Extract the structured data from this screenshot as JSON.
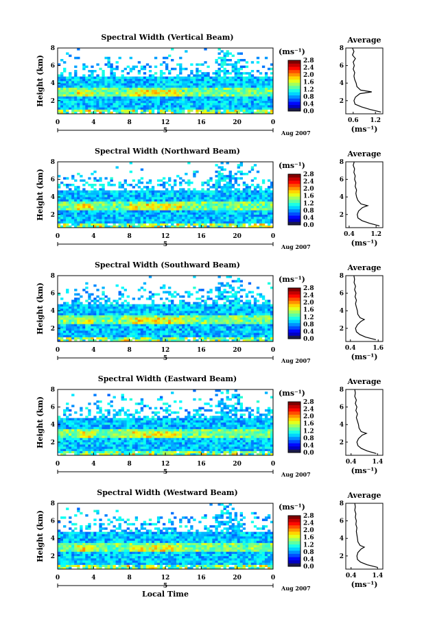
{
  "chart_data": [
    {
      "type": "heatmap",
      "title": "Spectral Width (Vertical Beam)",
      "ylabel": "Height (km)",
      "xlabel": "",
      "x_ticks": [
        "0",
        "4",
        "8",
        "12",
        "16",
        "20",
        "0"
      ],
      "y_ticks": [
        "2",
        "4",
        "6",
        "8"
      ],
      "xlim": [
        0,
        24
      ],
      "ylim": [
        0.5,
        8
      ],
      "date_marker": "5",
      "date_label": "Aug 2007",
      "colorbar": {
        "unit": "(ms⁻¹)",
        "ticks": [
          "0.0",
          "0.4",
          "0.8",
          "1.2",
          "1.6",
          "2.0",
          "2.4",
          "2.8"
        ],
        "range": [
          0,
          2.8
        ]
      },
      "average_panel": {
        "title": "Average",
        "xlabel": "(ms⁻¹)",
        "x_ticks": [
          "0.6",
          "1.2"
        ],
        "xlim": [
          0.4,
          1.4
        ],
        "y_ticks": [
          "2",
          "4",
          "6",
          "8"
        ],
        "ylim": [
          0.5,
          8
        ],
        "height_km": [
          0.7,
          1.0,
          1.3,
          1.6,
          2.0,
          2.4,
          2.8,
          3.0,
          3.2,
          3.6,
          4.0,
          4.4,
          4.8,
          5.2,
          5.6,
          6.0,
          6.4,
          6.8,
          7.2,
          7.6,
          8.0
        ],
        "width": [
          1.35,
          1.05,
          0.82,
          0.65,
          0.62,
          0.66,
          0.78,
          1.1,
          0.8,
          0.7,
          0.68,
          0.64,
          0.62,
          0.64,
          0.6,
          0.63,
          0.6,
          0.66,
          0.58,
          0.62,
          0.58
        ]
      }
    },
    {
      "type": "heatmap",
      "title": "Spectral Width (Northward Beam)",
      "ylabel": "Height (km)",
      "xlabel": "",
      "x_ticks": [
        "0",
        "4",
        "8",
        "12",
        "16",
        "20",
        "0"
      ],
      "y_ticks": [
        "2",
        "4",
        "6",
        "8"
      ],
      "xlim": [
        0,
        24
      ],
      "ylim": [
        0.5,
        8
      ],
      "date_marker": "5",
      "date_label": "Aug 2007",
      "colorbar": {
        "unit": "(ms⁻¹)",
        "ticks": [
          "0.0",
          "0.4",
          "0.8",
          "1.2",
          "1.6",
          "2.0",
          "2.4",
          "2.8"
        ],
        "range": [
          0,
          2.8
        ]
      },
      "average_panel": {
        "title": "Average",
        "xlabel": "(ms⁻¹)",
        "x_ticks": [
          "0.4",
          "1.2"
        ],
        "xlim": [
          0.3,
          1.4
        ],
        "y_ticks": [
          "2",
          "4",
          "6",
          "8"
        ],
        "ylim": [
          0.5,
          8
        ],
        "height_km": [
          0.7,
          1.0,
          1.3,
          1.6,
          2.0,
          2.4,
          2.8,
          3.0,
          3.2,
          3.6,
          4.0,
          4.4,
          4.8,
          5.2,
          5.6,
          6.0,
          6.4,
          6.8,
          7.2,
          7.6,
          8.0
        ],
        "width": [
          1.3,
          1.0,
          0.78,
          0.66,
          0.64,
          0.68,
          0.8,
          0.95,
          0.75,
          0.66,
          0.62,
          0.6,
          0.62,
          0.58,
          0.6,
          0.56,
          0.58,
          0.54,
          0.56,
          0.52,
          0.55
        ]
      }
    },
    {
      "type": "heatmap",
      "title": "Spectral Width (Southward Beam)",
      "ylabel": "Height (km)",
      "xlabel": "",
      "x_ticks": [
        "0",
        "4",
        "8",
        "12",
        "16",
        "20",
        "0"
      ],
      "y_ticks": [
        "2",
        "4",
        "6",
        "8"
      ],
      "xlim": [
        0,
        24
      ],
      "ylim": [
        0.5,
        8
      ],
      "date_marker": "5",
      "date_label": "Aug 2007",
      "colorbar": {
        "unit": "(ms⁻¹)",
        "ticks": [
          "0.0",
          "0.4",
          "0.8",
          "1.2",
          "1.6",
          "2.0",
          "2.4",
          "2.8"
        ],
        "range": [
          0,
          2.8
        ]
      },
      "average_panel": {
        "title": "Average",
        "xlabel": "(ms⁻¹)",
        "x_ticks": [
          "0.4",
          "1.6"
        ],
        "xlim": [
          0.2,
          1.8
        ],
        "y_ticks": [
          "2",
          "4",
          "6",
          "8"
        ],
        "ylim": [
          0.5,
          8
        ],
        "height_km": [
          0.7,
          1.0,
          1.3,
          1.6,
          2.0,
          2.4,
          2.8,
          3.0,
          3.2,
          3.6,
          4.0,
          4.4,
          4.8,
          5.2,
          5.6,
          6.0,
          6.4,
          6.8,
          7.2,
          7.6,
          8.0
        ],
        "width": [
          1.5,
          1.05,
          0.8,
          0.66,
          0.62,
          0.7,
          0.86,
          1.0,
          0.82,
          0.72,
          0.7,
          0.66,
          0.62,
          0.66,
          0.6,
          0.64,
          0.58,
          0.62,
          0.56,
          0.58,
          0.55
        ]
      }
    },
    {
      "type": "heatmap",
      "title": "Spectral Width (Eastward Beam)",
      "ylabel": "Height (km)",
      "xlabel": "",
      "x_ticks": [
        "0",
        "4",
        "8",
        "12",
        "16",
        "20",
        "0"
      ],
      "y_ticks": [
        "2",
        "4",
        "6",
        "8"
      ],
      "xlim": [
        0,
        24
      ],
      "ylim": [
        0.5,
        8
      ],
      "date_marker": "5",
      "date_label": "Aug 2007",
      "colorbar": {
        "unit": "(ms⁻¹)",
        "ticks": [
          "0.0",
          "0.4",
          "0.8",
          "1.2",
          "1.6",
          "2.0",
          "2.4",
          "2.8"
        ],
        "range": [
          0,
          2.8
        ]
      },
      "average_panel": {
        "title": "Average",
        "xlabel": "(ms⁻¹)",
        "x_ticks": [
          "0.4",
          "1.4"
        ],
        "xlim": [
          0.2,
          1.6
        ],
        "y_ticks": [
          "2",
          "4",
          "6",
          "8"
        ],
        "ylim": [
          0.5,
          8
        ],
        "height_km": [
          0.7,
          1.0,
          1.3,
          1.6,
          2.0,
          2.4,
          2.8,
          3.0,
          3.2,
          3.6,
          4.0,
          4.4,
          4.8,
          5.2,
          5.6,
          6.0,
          6.4,
          6.8,
          7.2,
          7.6,
          8.0
        ],
        "width": [
          1.35,
          1.0,
          0.78,
          0.66,
          0.62,
          0.68,
          0.82,
          0.98,
          0.78,
          0.7,
          0.68,
          0.64,
          0.6,
          0.64,
          0.58,
          0.62,
          0.56,
          0.6,
          0.54,
          0.56,
          0.54
        ]
      }
    },
    {
      "type": "heatmap",
      "title": "Spectral Width (Westward Beam)",
      "ylabel": "Height (km)",
      "xlabel": "Local Time",
      "x_ticks": [
        "0",
        "4",
        "8",
        "12",
        "16",
        "20",
        "0"
      ],
      "y_ticks": [
        "2",
        "4",
        "6",
        "8"
      ],
      "xlim": [
        0,
        24
      ],
      "ylim": [
        0.5,
        8
      ],
      "date_marker": "5",
      "date_label": "Aug 2007",
      "colorbar": {
        "unit": "(ms⁻¹)",
        "ticks": [
          "0.0",
          "0.4",
          "0.8",
          "1.2",
          "1.6",
          "2.0",
          "2.4",
          "2.8"
        ],
        "range": [
          0,
          2.8
        ]
      },
      "average_panel": {
        "title": "Average",
        "xlabel": "(ms⁻¹)",
        "x_ticks": [
          "0.4",
          "1.4"
        ],
        "xlim": [
          0.2,
          1.6
        ],
        "y_ticks": [
          "2",
          "4",
          "6",
          "8"
        ],
        "ylim": [
          0.5,
          8
        ],
        "height_km": [
          0.7,
          1.0,
          1.3,
          1.6,
          2.0,
          2.4,
          2.8,
          3.0,
          3.2,
          3.6,
          4.0,
          4.4,
          4.8,
          5.2,
          5.6,
          6.0,
          6.4,
          6.8,
          7.2,
          7.6,
          8.0
        ],
        "width": [
          1.4,
          1.0,
          0.76,
          0.64,
          0.62,
          0.66,
          0.78,
          0.9,
          0.74,
          0.66,
          0.64,
          0.62,
          0.6,
          0.62,
          0.58,
          0.6,
          0.56,
          0.58,
          0.54,
          0.56,
          0.54
        ]
      }
    }
  ]
}
